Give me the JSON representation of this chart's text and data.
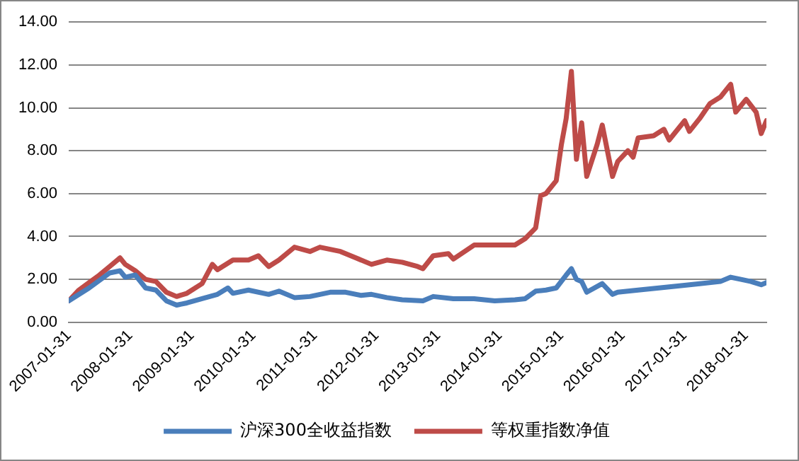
{
  "chart_data": {
    "type": "line",
    "xlim": [
      "2007-01-31",
      "2018-06"
    ],
    "xticks": [
      "2007-01-31",
      "2008-01-31",
      "2009-01-31",
      "2010-01-31",
      "2011-01-31",
      "2012-01-31",
      "2013-01-31",
      "2014-01-31",
      "2015-01-31",
      "2016-01-31",
      "2017-01-31",
      "2018-01-31"
    ],
    "ylim": [
      0,
      14
    ],
    "yticks": [
      {
        "value": 0,
        "label": "0.00"
      },
      {
        "value": 2,
        "label": "2.00"
      },
      {
        "value": 4,
        "label": "4.00"
      },
      {
        "value": 6,
        "label": "6.00"
      },
      {
        "value": 8,
        "label": "8.00"
      },
      {
        "value": 10,
        "label": "10.00"
      },
      {
        "value": 12,
        "label": "12.00"
      },
      {
        "value": 14,
        "label": "14.00"
      }
    ],
    "grid": "y",
    "legend": "bottom",
    "marker": "none",
    "line_style": "solid",
    "series": [
      {
        "name": "沪深300全收益指数",
        "color": "#4a7ebb",
        "x": [
          "2007-01-31",
          "2007-06",
          "2007-10",
          "2007-12",
          "2008-01",
          "2008-03",
          "2008-05",
          "2008-07",
          "2008-09",
          "2008-11",
          "2009-01",
          "2009-04",
          "2009-07",
          "2009-09",
          "2009-10",
          "2010-01",
          "2010-05",
          "2010-07",
          "2010-10",
          "2011-01",
          "2011-05",
          "2011-08",
          "2011-11",
          "2012-01",
          "2012-04",
          "2012-07",
          "2012-11",
          "2013-01",
          "2013-05",
          "2013-09",
          "2014-01",
          "2014-05",
          "2014-07",
          "2014-09",
          "2014-11",
          "2015-01",
          "2015-03",
          "2015-04",
          "2015-05",
          "2015-06",
          "2015-07",
          "2015-10",
          "2015-12",
          "2016-01",
          "2016-05",
          "2016-09",
          "2017-01",
          "2017-05",
          "2017-09",
          "2017-11",
          "2018-01",
          "2018-03",
          "2018-05",
          "2018-06"
        ],
        "values": [
          1.0,
          1.6,
          2.3,
          2.4,
          2.1,
          2.2,
          1.6,
          1.5,
          1.0,
          0.8,
          0.9,
          1.1,
          1.3,
          1.6,
          1.35,
          1.5,
          1.3,
          1.45,
          1.15,
          1.2,
          1.4,
          1.4,
          1.25,
          1.3,
          1.15,
          1.05,
          1.0,
          1.2,
          1.1,
          1.1,
          1.0,
          1.05,
          1.1,
          1.45,
          1.5,
          1.6,
          2.2,
          2.5,
          2.0,
          1.9,
          1.4,
          1.8,
          1.3,
          1.4,
          1.5,
          1.6,
          1.7,
          1.8,
          1.9,
          2.1,
          2.0,
          1.9,
          1.75,
          1.85
        ]
      },
      {
        "name": "等权重指数净值",
        "color": "#be4b48",
        "x": [
          "2007-01-31",
          "2007-04",
          "2007-06",
          "2007-08",
          "2007-10",
          "2007-12",
          "2008-01",
          "2008-03",
          "2008-05",
          "2008-07",
          "2008-09",
          "2008-11",
          "2009-01",
          "2009-04",
          "2009-06",
          "2009-07",
          "2009-10",
          "2010-01",
          "2010-03",
          "2010-05",
          "2010-07",
          "2010-10",
          "2011-01",
          "2011-03",
          "2011-05",
          "2011-07",
          "2011-10",
          "2012-01",
          "2012-04",
          "2012-07",
          "2012-10",
          "2012-11",
          "2013-01",
          "2013-04",
          "2013-05",
          "2013-09",
          "2014-01",
          "2014-05",
          "2014-07",
          "2014-09",
          "2014-10",
          "2014-11",
          "2015-01",
          "2015-02",
          "2015-03",
          "2015-04",
          "2015-05",
          "2015-06",
          "2015-07",
          "2015-09",
          "2015-10",
          "2015-12",
          "2016-01",
          "2016-03",
          "2016-04",
          "2016-05",
          "2016-08",
          "2016-10",
          "2016-11",
          "2017-02",
          "2017-03",
          "2017-05",
          "2017-07",
          "2017-09",
          "2017-11",
          "2017-12",
          "2018-02",
          "2018-04",
          "2018-05",
          "2018-06"
        ],
        "values": [
          1.0,
          1.5,
          1.85,
          2.2,
          2.6,
          3.0,
          2.7,
          2.4,
          2.0,
          1.9,
          1.4,
          1.2,
          1.35,
          1.8,
          2.7,
          2.45,
          2.9,
          2.9,
          3.1,
          2.6,
          2.9,
          3.5,
          3.3,
          3.5,
          3.4,
          3.3,
          3.0,
          2.7,
          2.9,
          2.8,
          2.6,
          2.5,
          3.1,
          3.2,
          2.95,
          3.6,
          3.6,
          3.6,
          3.9,
          4.4,
          5.9,
          6.0,
          6.6,
          8.3,
          9.5,
          11.7,
          7.6,
          9.3,
          6.8,
          8.3,
          9.2,
          6.8,
          7.5,
          8.0,
          7.7,
          8.6,
          8.7,
          9.0,
          8.5,
          9.4,
          8.9,
          9.5,
          10.2,
          10.5,
          11.1,
          9.8,
          10.4,
          9.8,
          8.8,
          9.4
        ]
      }
    ]
  }
}
